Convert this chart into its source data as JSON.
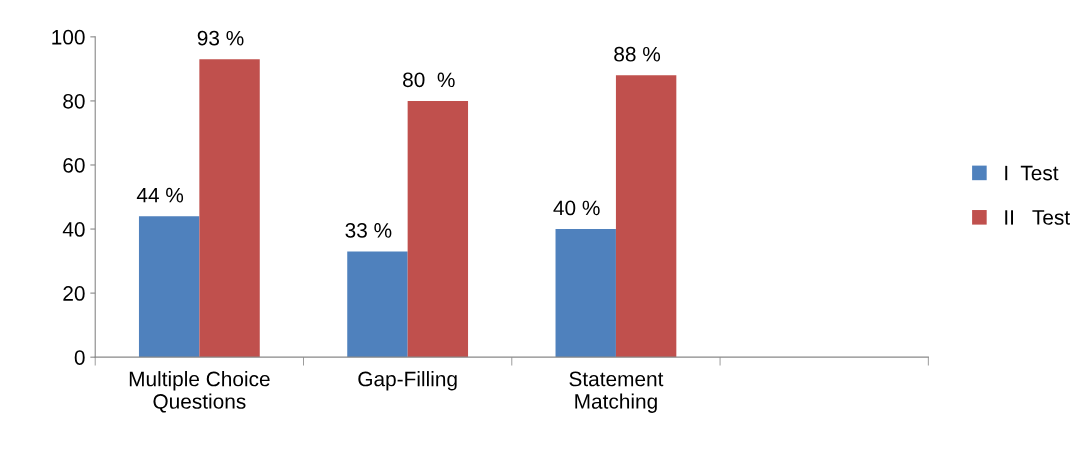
{
  "chart_data": {
    "type": "bar",
    "categories": [
      "Multiple Choice\nQuestions",
      "Gap-Filling",
      "Statement\nMatching",
      null
    ],
    "series": [
      {
        "name": "I  Test",
        "color": "#4f81bd",
        "values": [
          44,
          33,
          40,
          null
        ],
        "value_labels": [
          "44 %",
          "33 %",
          "40 %",
          null
        ]
      },
      {
        "name": "II   Test",
        "color": "#c0504d",
        "values": [
          93,
          80,
          88,
          null
        ],
        "value_labels": [
          "93 %",
          "80  %",
          "88 %",
          null
        ]
      }
    ],
    "ylim": [
      0,
      100
    ],
    "yticks": [
      0,
      20,
      40,
      60,
      80,
      100
    ],
    "grid": false,
    "legend": "right"
  }
}
